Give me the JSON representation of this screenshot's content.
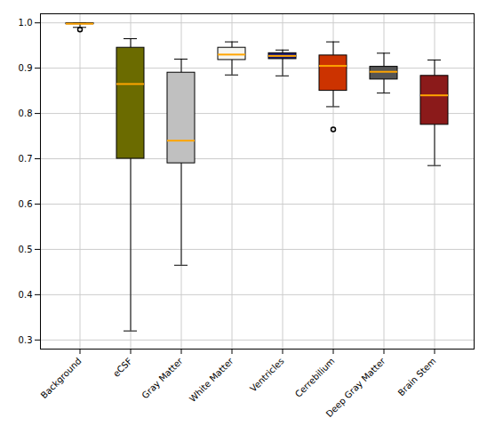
{
  "chart_data": {
    "type": "box",
    "categories": [
      "Background",
      "eCSF",
      "Gray Matter",
      "White Matter",
      "Ventricles",
      "Cerrebilium",
      "Deep Gray Matter",
      "Brain Stem"
    ],
    "whislo": [
      0.99,
      0.32,
      0.465,
      0.885,
      0.883,
      0.815,
      0.845,
      0.685
    ],
    "q1": [
      0.997,
      0.7,
      0.69,
      0.918,
      0.92,
      0.85,
      0.875,
      0.775
    ],
    "med": [
      0.998,
      0.865,
      0.74,
      0.93,
      0.927,
      0.905,
      0.892,
      0.84
    ],
    "q3": [
      0.999,
      0.945,
      0.89,
      0.945,
      0.933,
      0.928,
      0.903,
      0.883
    ],
    "whishi": [
      1.0,
      0.965,
      0.92,
      0.958,
      0.94,
      0.958,
      0.933,
      0.918
    ],
    "fliers": [
      [
        0.985
      ],
      [],
      [],
      [],
      [],
      [
        0.765
      ],
      [],
      []
    ],
    "colors": [
      "#b8860b",
      "#6b6b00",
      "#c0c0c0",
      "#f5f5f0",
      "#191970",
      "#cc3300",
      "#555555",
      "#8b1a1a"
    ],
    "median_color": "#ffa500",
    "ylim": [
      0.28,
      1.02
    ],
    "yticks": [
      0.3,
      0.4,
      0.5,
      0.6,
      0.7,
      0.8,
      0.9,
      {
        "value": 1.0,
        "label": "1.0"
      }
    ],
    "grid": true
  }
}
